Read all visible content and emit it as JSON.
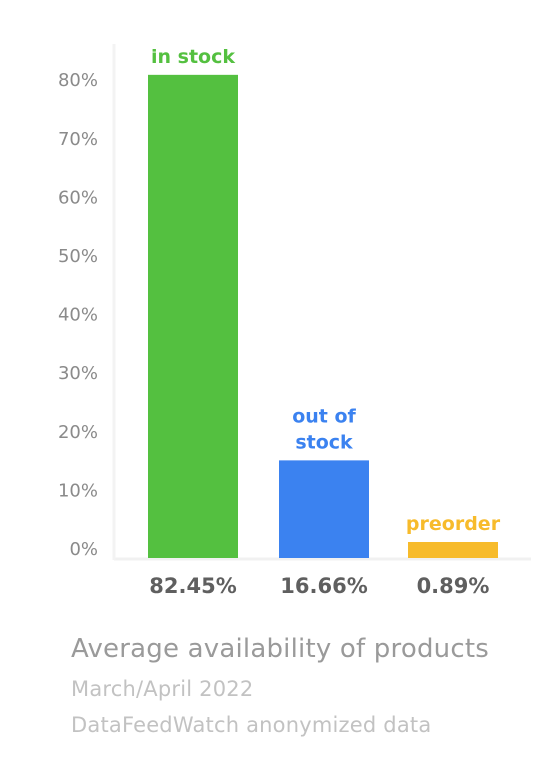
{
  "chart_data": {
    "type": "bar",
    "categories": [
      "in stock",
      "out of stock",
      "preorder"
    ],
    "category_label_lines": [
      [
        "in stock"
      ],
      [
        "out of",
        "stock"
      ],
      [
        "preorder"
      ]
    ],
    "values": [
      82.45,
      16.66,
      0.89
    ],
    "value_labels": [
      "82.45%",
      "16.66%",
      "0.89%"
    ],
    "colors": [
      "#54c040",
      "#3b82f0",
      "#f7bb2b"
    ],
    "y_ticks": [
      "0%",
      "10%",
      "20%",
      "30%",
      "40%",
      "50%",
      "60%",
      "70%",
      "80%"
    ],
    "ylim": [
      0,
      85
    ],
    "grid": false,
    "title": "Average availability of products",
    "subtitle": "March/April 2022",
    "source": "DataFeedWatch anonymized data"
  }
}
